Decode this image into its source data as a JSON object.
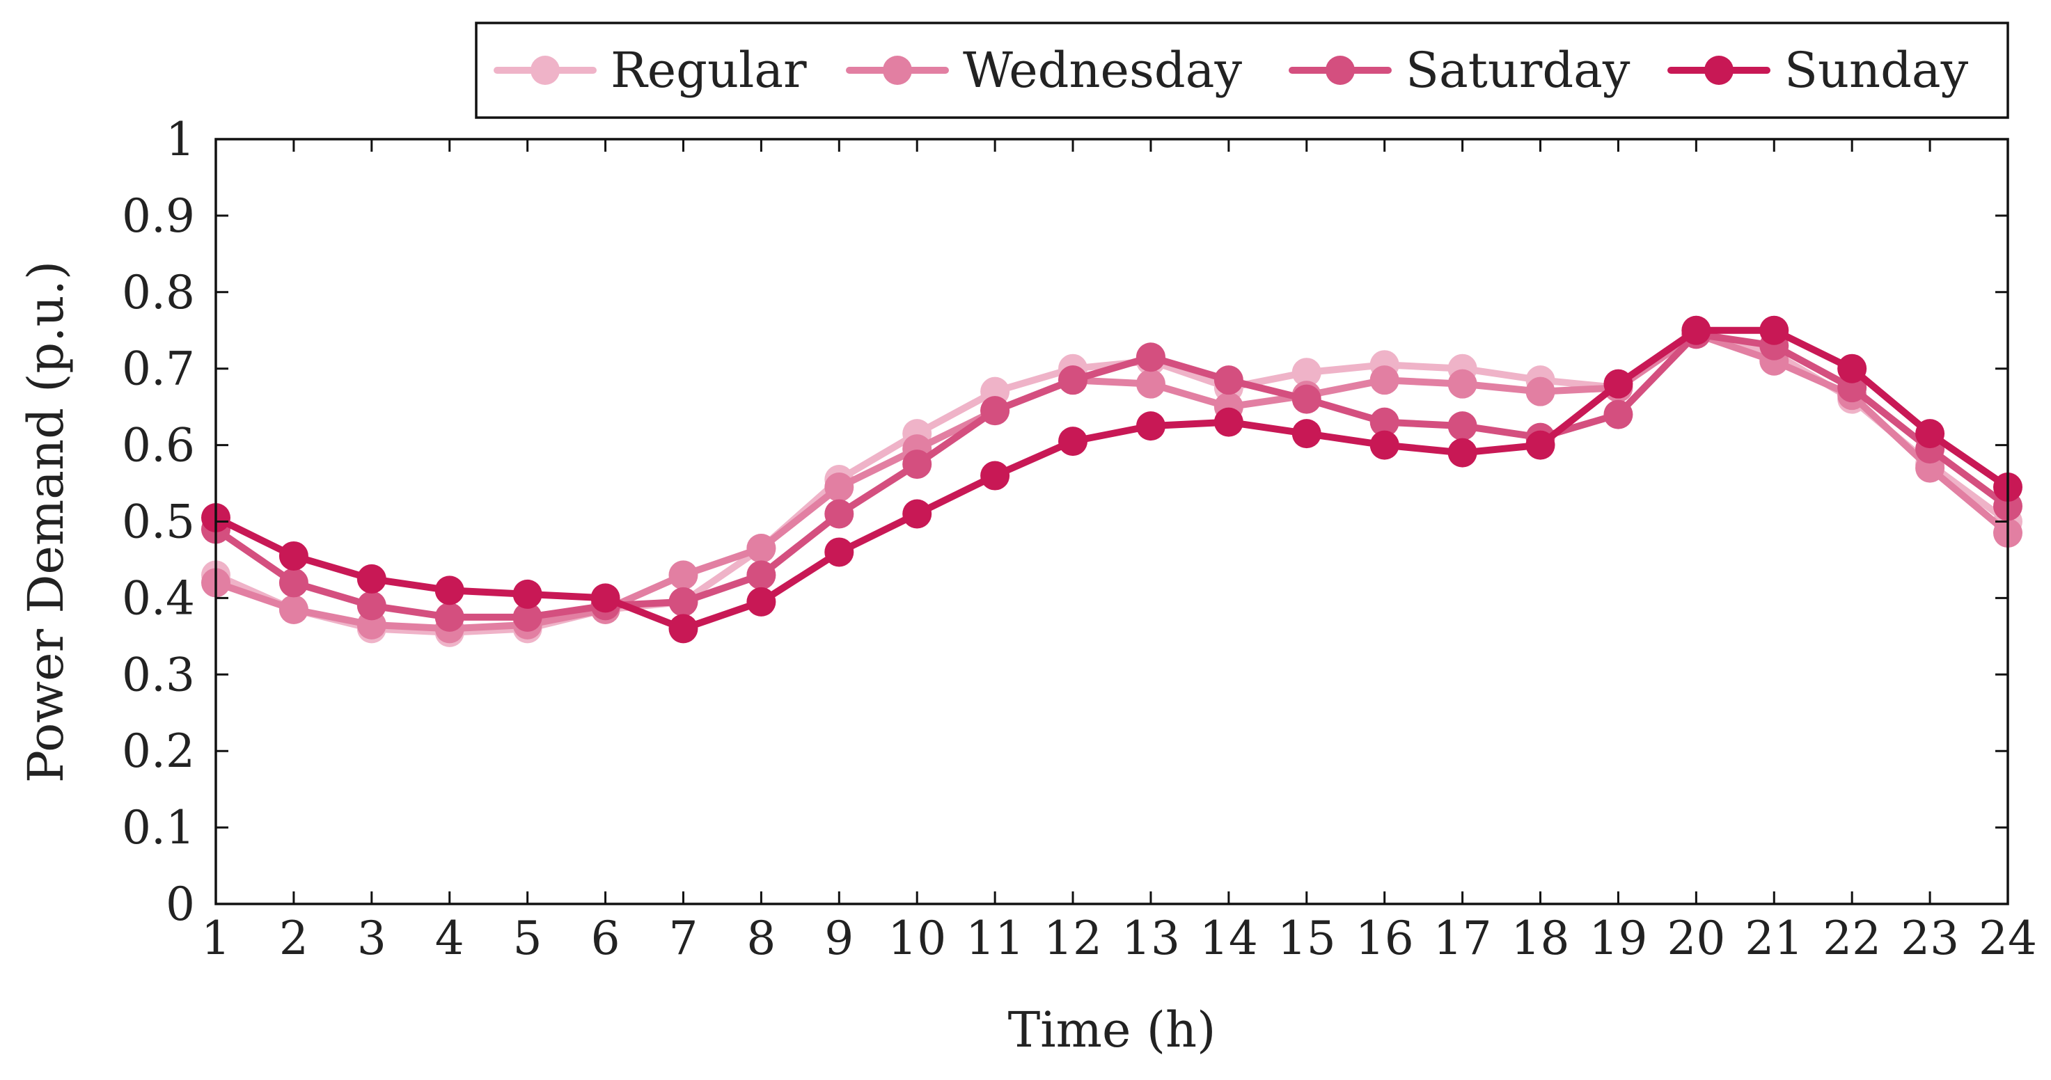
{
  "chart_data": {
    "type": "line",
    "title": "",
    "xlabel": "Time (h)",
    "ylabel": "Power Demand (p.u.)",
    "xlim": [
      1,
      24
    ],
    "ylim": [
      0,
      1
    ],
    "grid": false,
    "legend_position": "top-right",
    "x": [
      1,
      2,
      3,
      4,
      5,
      6,
      7,
      8,
      9,
      10,
      11,
      12,
      13,
      14,
      15,
      16,
      17,
      18,
      19,
      20,
      21,
      22,
      23,
      24
    ],
    "x_tick_labels": [
      "1",
      "2",
      "3",
      "4",
      "5",
      "6",
      "7",
      "8",
      "9",
      "10",
      "11",
      "12",
      "13",
      "14",
      "15",
      "16",
      "17",
      "18",
      "19",
      "20",
      "21",
      "22",
      "23",
      "24"
    ],
    "y_ticks": [
      0,
      0.1,
      0.2,
      0.3,
      0.4,
      0.5,
      0.6,
      0.7,
      0.8,
      0.9,
      1
    ],
    "y_tick_labels": [
      "0",
      "0.1",
      "0.2",
      "0.3",
      "0.4",
      "0.5",
      "0.6",
      "0.7",
      "0.8",
      "0.9",
      "1"
    ],
    "series": [
      {
        "name": "Regular",
        "color": "#EFB3C8",
        "values": [
          0.43,
          0.385,
          0.36,
          0.355,
          0.36,
          0.385,
          0.395,
          0.465,
          0.555,
          0.615,
          0.67,
          0.7,
          0.71,
          0.675,
          0.695,
          0.705,
          0.7,
          0.685,
          0.675,
          0.75,
          0.72,
          0.66,
          0.575,
          0.5
        ]
      },
      {
        "name": "Wednesday",
        "color": "#E27FA2",
        "values": [
          0.42,
          0.385,
          0.365,
          0.36,
          0.365,
          0.385,
          0.43,
          0.465,
          0.545,
          0.595,
          0.645,
          0.685,
          0.68,
          0.65,
          0.665,
          0.685,
          0.68,
          0.67,
          0.675,
          0.745,
          0.71,
          0.665,
          0.57,
          0.485
        ]
      },
      {
        "name": "Saturday",
        "color": "#D44F7F",
        "values": [
          0.49,
          0.42,
          0.39,
          0.375,
          0.375,
          0.39,
          0.395,
          0.43,
          0.51,
          0.575,
          0.645,
          0.685,
          0.715,
          0.685,
          0.66,
          0.63,
          0.625,
          0.61,
          0.64,
          0.745,
          0.73,
          0.675,
          0.595,
          0.52
        ]
      },
      {
        "name": "Sunday",
        "color": "#C81855",
        "values": [
          0.505,
          0.455,
          0.425,
          0.41,
          0.405,
          0.4,
          0.36,
          0.395,
          0.46,
          0.51,
          0.56,
          0.605,
          0.625,
          0.63,
          0.615,
          0.6,
          0.59,
          0.6,
          0.68,
          0.75,
          0.75,
          0.7,
          0.615,
          0.545
        ]
      }
    ]
  }
}
